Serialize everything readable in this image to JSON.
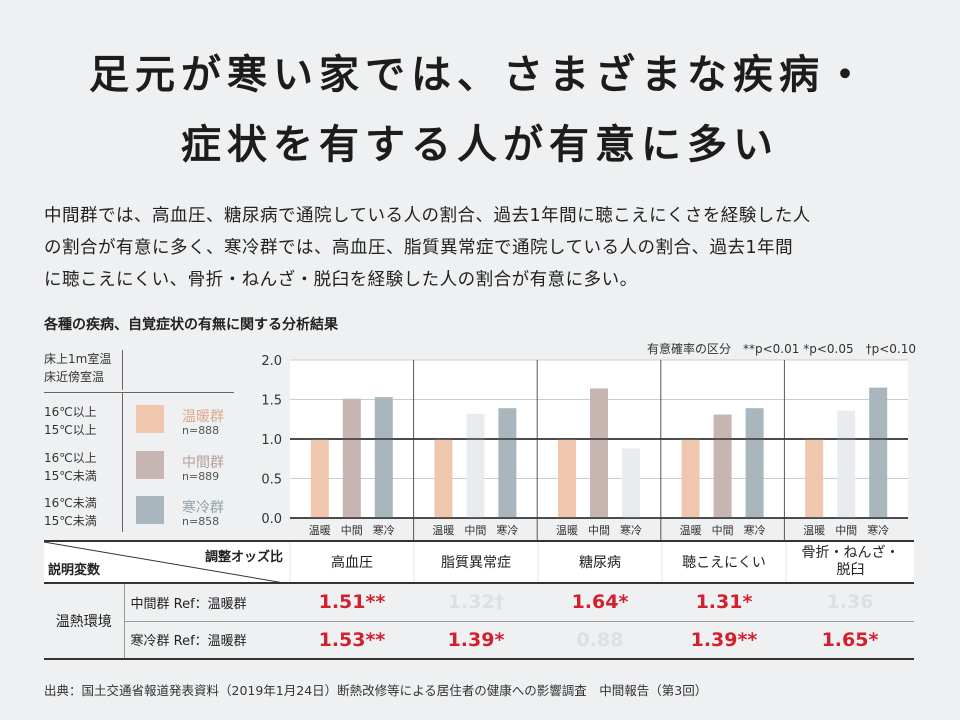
{
  "headline": {
    "line1": "足元が寒い家では、さまざまな疾病・",
    "line2": "症状を有する人が有意に多い"
  },
  "description": [
    "中間群では、高血圧、糖尿病で通院している人の割合、過去1年間に聴こえにくさを経験した人",
    "の割合が有意に多く、寒冷群では、高血圧、脂質異常症で通院している人の割合、過去1年間",
    "に聴こえにくい、骨折・ねんざ・脱臼を経験した人の割合が有意に多い。"
  ],
  "subtitle": "各種の疾病、自覚症状の有無に関する分析結果",
  "significance_legend": "有意確率の区分　**p<0.01 *p<0.05　†p<0.10",
  "legend": {
    "header1": "床上1m室温",
    "header2": "床近傍室温",
    "groups": [
      {
        "cond1": "16℃以上",
        "cond2": "15℃以上",
        "name": "温暖群",
        "n": "n=888",
        "color": "#eec7ae"
      },
      {
        "cond1": "16℃以上",
        "cond2": "15℃未満",
        "name": "中間群",
        "n": "n=889",
        "color": "#c6b5b0"
      },
      {
        "cond1": "16℃未満",
        "cond2": "15℃未満",
        "name": "寒冷群",
        "n": "n=858",
        "color": "#a9b6bd"
      }
    ]
  },
  "chart_data": {
    "type": "bar",
    "yticks": [
      "0.0",
      "0.5",
      "1.0",
      "1.5",
      "2.0"
    ],
    "ylim": [
      0,
      2.0
    ],
    "grid": true,
    "category_bar_labels": [
      "温暖",
      "中間",
      "寒冷"
    ],
    "categories": [
      "高血圧",
      "脂質異常症",
      "糖尿病",
      "聴こえにくい",
      "骨折・ねんざ・脱臼"
    ],
    "series": [
      {
        "name": "温暖群",
        "values": [
          1.0,
          1.0,
          1.0,
          1.0,
          1.0
        ]
      },
      {
        "name": "中間群",
        "values": [
          1.51,
          1.32,
          1.64,
          1.31,
          1.36
        ]
      },
      {
        "name": "寒冷群",
        "values": [
          1.53,
          1.39,
          0.88,
          1.39,
          1.65
        ]
      }
    ],
    "significant": [
      [
        false,
        true,
        true
      ],
      [
        false,
        false,
        true
      ],
      [
        false,
        true,
        false
      ],
      [
        false,
        true,
        true
      ],
      [
        false,
        false,
        true
      ]
    ],
    "faded_color": "#e9ecef"
  },
  "table": {
    "header_top": "調整オッズ比",
    "header_left": "説明変数",
    "category_cells": [
      "高血圧",
      "脂質異常症",
      "糖尿病",
      "聴こえにくい",
      "骨折・ねんざ・"
    ],
    "category_cell_last_line2": "脱臼",
    "group_label": "温熱環境",
    "rows": [
      {
        "label": "中間群 Ref：温暖群",
        "values": [
          "1.51**",
          "1.32†",
          "1.64*",
          "1.31*",
          "1.36"
        ],
        "sig": [
          true,
          false,
          true,
          true,
          false
        ]
      },
      {
        "label": "寒冷群 Ref：温暖群",
        "values": [
          "1.53**",
          "1.39*",
          "0.88",
          "1.39**",
          "1.65*"
        ],
        "sig": [
          true,
          true,
          false,
          true,
          true
        ]
      }
    ]
  },
  "source": "出典：国土交通省報道発表資料（2019年1月24日）断熱改修等による居住者の健康への影響調査　中間報告（第3回）"
}
